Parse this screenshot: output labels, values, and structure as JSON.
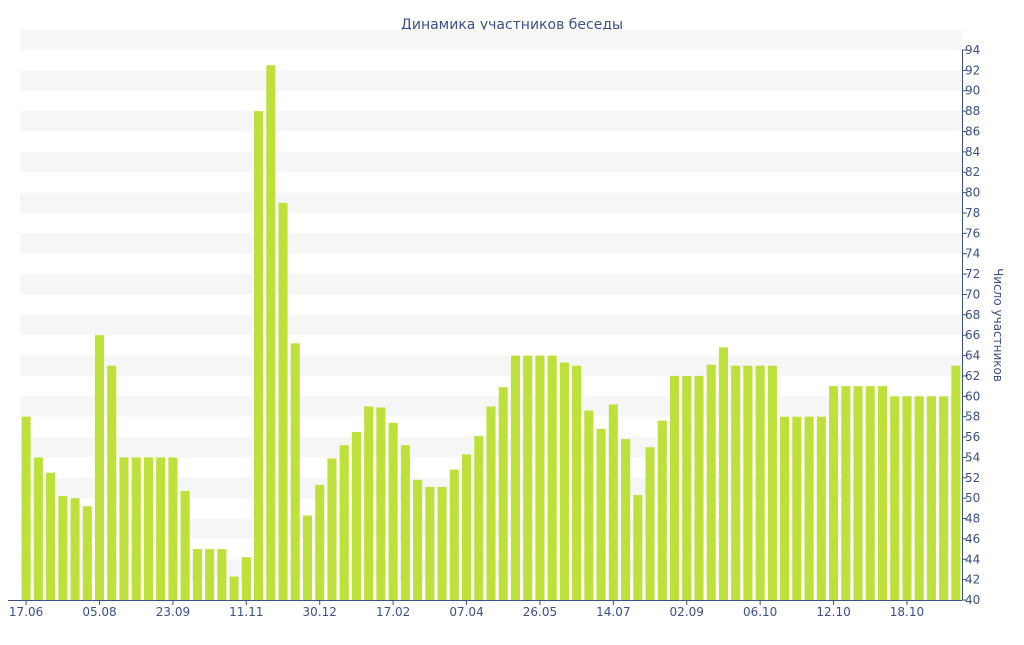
{
  "chart_data": {
    "type": "bar",
    "title": "Динамика участников беседы",
    "ylabel": "Число участников",
    "xlabel": "",
    "ylim": [
      40,
      94
    ],
    "y_ticks": [
      40,
      42,
      44,
      46,
      48,
      50,
      52,
      54,
      56,
      58,
      60,
      62,
      64,
      66,
      68,
      70,
      72,
      74,
      76,
      78,
      80,
      82,
      84,
      86,
      88,
      90,
      92,
      94
    ],
    "x_tick_labels": [
      {
        "index": 0,
        "label": "17.06"
      },
      {
        "index": 6,
        "label": "05.08"
      },
      {
        "index": 12,
        "label": "23.09"
      },
      {
        "index": 18,
        "label": "11.11"
      },
      {
        "index": 24,
        "label": "30.12"
      },
      {
        "index": 30,
        "label": "17.02"
      },
      {
        "index": 36,
        "label": "07.04"
      },
      {
        "index": 42,
        "label": "26.05"
      },
      {
        "index": 48,
        "label": "14.07"
      },
      {
        "index": 54,
        "label": "02.09"
      },
      {
        "index": 60,
        "label": "06.10"
      },
      {
        "index": 66,
        "label": "12.10"
      },
      {
        "index": 72,
        "label": "18.10"
      }
    ],
    "values": [
      58,
      54,
      52.5,
      50.2,
      50,
      49.2,
      66,
      63,
      54,
      54,
      54,
      54,
      54,
      50.7,
      45,
      45,
      45,
      42.3,
      44.2,
      88,
      92.5,
      79,
      65.2,
      48.3,
      51.3,
      53.9,
      55.2,
      56.5,
      59,
      58.9,
      57.4,
      55.2,
      51.8,
      51.1,
      51.1,
      52.8,
      54.3,
      56.1,
      59,
      60.9,
      64,
      64,
      64,
      64,
      63.3,
      63,
      58.6,
      56.8,
      59.2,
      55.8,
      50.3,
      55,
      57.6,
      62,
      62,
      62,
      63.1,
      64.8,
      63,
      63,
      63,
      63,
      58,
      58,
      58,
      58,
      61,
      61,
      61,
      61,
      61,
      60,
      60,
      60,
      60,
      60,
      63
    ],
    "colors": {
      "bar": "#bde03a",
      "band": "#f6f6f6",
      "text": "#3b4f8a",
      "axis": "#3b4f8a"
    },
    "grid": true
  }
}
